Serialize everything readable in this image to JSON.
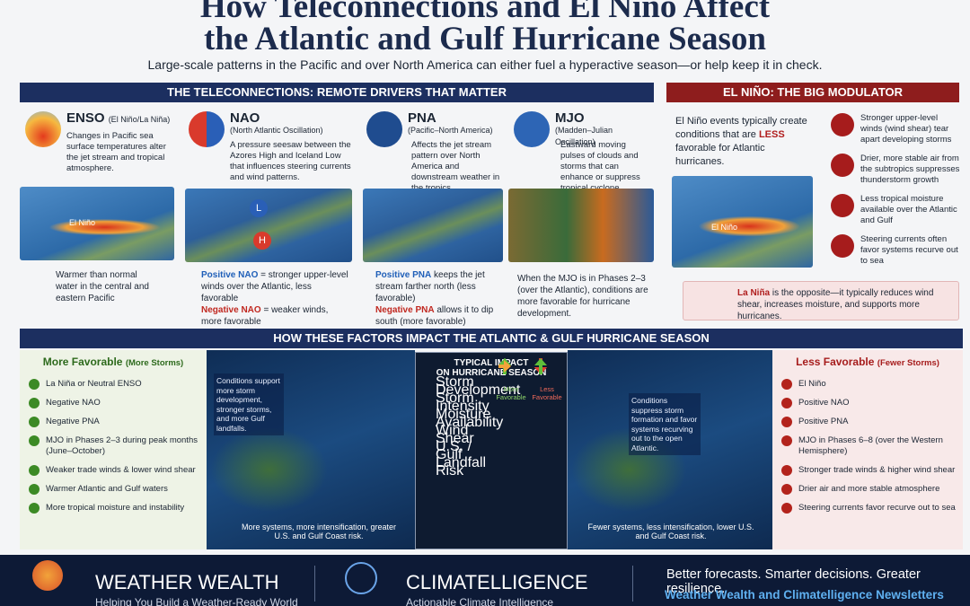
{
  "header": {
    "title_lines": [
      "How Teleconnections and El Niño Affect",
      "the Atlantic and Gulf Hurricane Season"
    ],
    "subtitle": "Large-scale patterns in the Pacific and over North America can either fuel a hyperactive season—or help keep it in check."
  },
  "teleconnections": {
    "heading": "THE TELECONNECTIONS: REMOTE DRIVERS THAT MATTER",
    "cards": [
      {
        "name": "ENSO",
        "full": "(El Niño/La Niña)",
        "desc": "Changes in Pacific sea surface temperatures alter the jet stream and tropical atmosphere.",
        "map_label": "El Niño",
        "caption": "Warmer than normal water in the central and eastern Pacific"
      },
      {
        "name": "NAO",
        "full": "(North Atlantic Oscillation)",
        "desc": "A pressure seesaw between the Azores High and Iceland Low that influences steering currents and wind patterns.",
        "map_labels": [
          "L",
          "H"
        ],
        "positive_term": "Positive NAO",
        "positive_text": " = stronger upper-level winds over the Atlantic, less favorable",
        "negative_term": "Negative NAO",
        "negative_text": " = weaker winds, more favorable"
      },
      {
        "name": "PNA",
        "full": "(Pacific–North America)",
        "desc": "Affects the jet stream pattern over North America and downstream weather in the tropics.",
        "positive_term": "Positive PNA",
        "positive_text": " keeps the jet stream farther north (less favorable)",
        "negative_term": "Negative PNA",
        "negative_text": " allows it to dip south (more favorable)"
      },
      {
        "name": "MJO",
        "full": "(Madden–Julian Oscillation)",
        "desc": "Eastward moving pulses of clouds and storms that can enhance or suppress tropical cyclone formation for weeks.",
        "caption": "When the MJO is in Phases 2–3 (over the Atlantic), conditions are more favorable for hurricane development."
      }
    ]
  },
  "el_nino": {
    "heading": "EL NIÑO: THE BIG MODULATOR",
    "intro_before": "El Niño events typically create conditions that are ",
    "intro_emphasis": "LESS",
    "intro_after": " favorable for Atlantic hurricanes.",
    "map_label": "El Niño",
    "effects": [
      "Stronger upper-level winds (wind shear) tear apart developing storms",
      "Drier, more stable air from the subtropics suppresses thunderstorm growth",
      "Less tropical moisture available over the Atlantic and Gulf",
      "Steering currents often favor systems recurve out to sea"
    ],
    "note_term": "La Niña",
    "note_text": " is the opposite—it typically reduces wind shear, increases moisture, and supports more hurricanes."
  },
  "impact": {
    "heading": "HOW THESE FACTORS IMPACT THE ATLANTIC & GULF HURRICANE SEASON",
    "more": {
      "title": "More Favorable",
      "subtitle": "(More Storms)",
      "items": [
        "La Niña or Neutral ENSO",
        "Negative NAO",
        "Negative PNA",
        "MJO in Phases 2–3 during peak months (June–October)",
        "Weaker trade winds & lower wind shear",
        "Warmer Atlantic and Gulf waters",
        "More tropical moisture and instability"
      ],
      "map_note": "Conditions support more storm development, stronger storms, and more Gulf landfalls.",
      "map_caption": "More systems, more intensification, greater U.S. and Gulf Coast risk."
    },
    "table": {
      "title_lines": [
        "TYPICAL IMPACT",
        "ON HURRICANE SEASON"
      ],
      "columns": [
        "More Favorable",
        "Less Favorable"
      ],
      "rows": [
        "Storm Development",
        "Storm Intensity",
        "Moisture Availability",
        "Wind Shear",
        "U.S. / Gulf Landfall Risk"
      ]
    },
    "less": {
      "title": "Less Favorable",
      "subtitle": "(Fewer Storms)",
      "items": [
        "El Niño",
        "Positive NAO",
        "Positive PNA",
        "MJO in Phases 6–8 (over the Western Hemisphere)",
        "Stronger trade winds & higher wind shear",
        "Drier air and more stable atmosphere",
        "Steering currents favor recurve out to sea"
      ],
      "map_note": "Conditions suppress storm formation and favor systems recurving out to the open Atlantic.",
      "map_caption": "Fewer systems, less intensification, lower U.S. and Gulf Coast risk."
    }
  },
  "footer": {
    "brand1": "WEATHER WEALTH",
    "tagline1": "Helping You Build a Weather-Ready World",
    "brand2": "CLIMATELLIGENCE",
    "tagline2": "Actionable Climate Intelligence",
    "slogan": "Better forecasts. Smarter decisions. Greater resilience.",
    "newsletters": "Weather Wealth and Climatelligence Newsletters"
  }
}
